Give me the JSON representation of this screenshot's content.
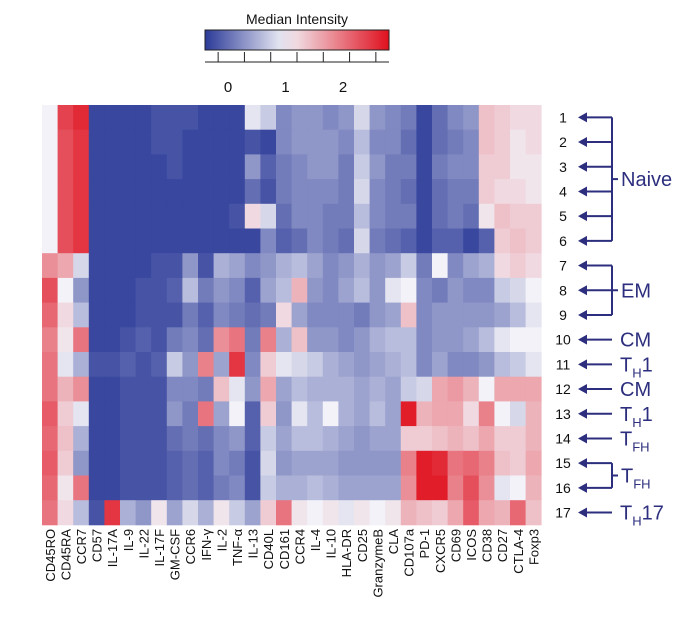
{
  "chart_data": {
    "type": "heatmap",
    "colorbar": {
      "title": "Median Intensity",
      "range": [
        -0.4,
        2.8
      ],
      "ticks": [
        0,
        1,
        2
      ],
      "tick_labels": [
        "0",
        "1",
        "2"
      ],
      "colors": {
        "low": "#2b3a98",
        "mid": "#f2f2f8",
        "high": "#e0101e"
      },
      "mid_value": 1
    },
    "columns": [
      "CD45RO",
      "CD45RA",
      "CCR7",
      "CD57",
      "IL-17A",
      "IL-9",
      "IL-22",
      "IL-17F",
      "GM-CSF",
      "CCR6",
      "IFN-γ",
      "IL-2",
      "TNF-α",
      "IL-13",
      "CD40L",
      "CD161",
      "CCR4",
      "IL-4",
      "IL-10",
      "HLA-DR",
      "CD25",
      "GranzymeB",
      "CLA",
      "CD107a",
      "PD-1",
      "CXCR5",
      "CD69",
      "ICOS",
      "CD38",
      "CD27",
      "CTLA-4",
      "Foxp3"
    ],
    "rows": [
      "1",
      "2",
      "3",
      "4",
      "5",
      "6",
      "7",
      "8",
      "9",
      "10",
      "11",
      "12",
      "13",
      "14",
      "15",
      "16",
      "17"
    ],
    "values": [
      [
        1.0,
        2.4,
        2.6,
        -0.3,
        -0.3,
        -0.3,
        -0.3,
        -0.2,
        -0.2,
        -0.2,
        -0.3,
        -0.3,
        -0.3,
        0.9,
        0.7,
        0.2,
        0.3,
        0.3,
        0.2,
        0.3,
        0.8,
        0.3,
        0.2,
        0.1,
        -0.3,
        0.0,
        0.2,
        0.3,
        1.4,
        1.3,
        1.2,
        1.2
      ],
      [
        1.0,
        2.3,
        2.5,
        -0.3,
        -0.3,
        -0.3,
        -0.3,
        -0.2,
        -0.2,
        -0.3,
        -0.3,
        -0.3,
        -0.3,
        -0.2,
        -0.3,
        0.2,
        0.3,
        0.3,
        0.3,
        0.2,
        0.6,
        0.2,
        0.2,
        0.0,
        -0.3,
        0.0,
        0.1,
        0.2,
        1.4,
        1.3,
        1.1,
        1.2
      ],
      [
        1.0,
        2.3,
        2.5,
        -0.3,
        -0.3,
        -0.3,
        -0.3,
        -0.3,
        -0.2,
        -0.3,
        -0.3,
        -0.3,
        -0.3,
        0.3,
        -0.1,
        0.1,
        0.2,
        0.3,
        0.3,
        0.1,
        0.7,
        0.3,
        0.1,
        0.1,
        -0.3,
        0.1,
        0.2,
        0.2,
        1.3,
        1.3,
        1.1,
        1.1
      ],
      [
        1.0,
        2.3,
        2.5,
        -0.3,
        -0.3,
        -0.3,
        -0.3,
        -0.3,
        -0.3,
        -0.3,
        -0.3,
        -0.3,
        -0.3,
        0.0,
        -0.2,
        0.1,
        0.2,
        0.2,
        0.2,
        0.1,
        0.8,
        0.2,
        0.1,
        0.0,
        -0.3,
        0.0,
        0.1,
        0.1,
        1.3,
        1.2,
        1.2,
        1.1
      ],
      [
        1.0,
        2.3,
        2.5,
        -0.3,
        -0.3,
        -0.3,
        -0.3,
        -0.3,
        -0.3,
        -0.3,
        -0.3,
        -0.3,
        -0.2,
        1.2,
        0.8,
        0.0,
        0.2,
        0.2,
        0.1,
        0.1,
        0.6,
        0.2,
        0.1,
        0.1,
        -0.3,
        0.0,
        0.1,
        0.0,
        1.1,
        1.4,
        1.3,
        1.3
      ],
      [
        1.0,
        2.3,
        2.5,
        -0.3,
        -0.3,
        -0.3,
        -0.3,
        -0.3,
        -0.3,
        -0.3,
        -0.3,
        -0.3,
        -0.3,
        -0.3,
        0.2,
        -0.1,
        0.0,
        0.2,
        0.1,
        0.0,
        0.8,
        0.1,
        0.0,
        -0.1,
        -0.3,
        -0.1,
        -0.1,
        -0.3,
        -0.1,
        1.3,
        1.4,
        1.3
      ],
      [
        1.8,
        1.6,
        0.8,
        -0.3,
        -0.3,
        -0.3,
        -0.3,
        -0.2,
        -0.2,
        0.3,
        -0.2,
        0.5,
        0.4,
        0.2,
        0.3,
        0.5,
        0.6,
        0.4,
        0.2,
        0.3,
        0.5,
        0.3,
        0.4,
        0.7,
        0.1,
        1.0,
        0.2,
        0.4,
        0.5,
        1.2,
        1.3,
        1.2
      ],
      [
        2.3,
        1.0,
        0.3,
        -0.3,
        -0.3,
        -0.3,
        -0.2,
        -0.2,
        -0.1,
        0.6,
        0.1,
        0.3,
        0.2,
        -0.1,
        0.4,
        0.6,
        1.5,
        0.3,
        0.2,
        0.4,
        0.6,
        0.3,
        0.9,
        1.0,
        0.2,
        0.1,
        0.3,
        0.2,
        0.2,
        0.7,
        0.8,
        1.0
      ],
      [
        2.1,
        1.2,
        0.6,
        -0.3,
        -0.3,
        -0.3,
        -0.2,
        -0.2,
        -0.2,
        0.1,
        -0.1,
        0.2,
        0.1,
        0.0,
        0.1,
        1.2,
        0.4,
        0.2,
        0.2,
        0.2,
        0.1,
        0.3,
        0.4,
        1.4,
        0.2,
        0.3,
        0.3,
        0.3,
        0.3,
        0.4,
        0.6,
        0.9
      ],
      [
        1.9,
        1.1,
        2.0,
        -0.3,
        -0.3,
        -0.2,
        -0.1,
        -0.2,
        0.1,
        0.2,
        0.0,
        1.8,
        2.0,
        0.1,
        1.9,
        0.5,
        1.4,
        0.3,
        0.3,
        0.2,
        0.3,
        0.5,
        0.6,
        0.6,
        0.2,
        0.3,
        0.3,
        0.4,
        0.6,
        0.9,
        1.0,
        1.0
      ],
      [
        2.0,
        0.9,
        0.5,
        -0.2,
        -0.2,
        -0.1,
        -0.2,
        -0.1,
        0.7,
        0.3,
        1.9,
        0.4,
        2.5,
        0.2,
        1.3,
        0.9,
        0.8,
        0.7,
        0.5,
        0.4,
        0.3,
        0.4,
        0.5,
        0.6,
        0.2,
        0.4,
        0.2,
        0.2,
        0.3,
        0.6,
        0.7,
        0.9
      ],
      [
        2.0,
        1.5,
        1.8,
        -0.3,
        -0.3,
        -0.2,
        -0.2,
        -0.2,
        0.2,
        0.2,
        0.1,
        1.4,
        0.9,
        0.3,
        1.6,
        0.4,
        0.6,
        0.5,
        0.5,
        0.5,
        0.4,
        0.5,
        0.4,
        0.7,
        0.8,
        1.6,
        1.7,
        1.5,
        1.0,
        1.6,
        1.6,
        1.6
      ],
      [
        2.2,
        1.3,
        0.9,
        -0.3,
        -0.3,
        -0.2,
        -0.2,
        -0.2,
        0.3,
        0.1,
        2.0,
        0.4,
        1.0,
        -0.1,
        1.3,
        0.3,
        0.9,
        0.6,
        1.0,
        0.5,
        0.4,
        0.6,
        0.4,
        2.7,
        1.5,
        1.6,
        1.6,
        1.2,
        1.9,
        1.0,
        0.8,
        1.5
      ],
      [
        2.1,
        1.4,
        0.5,
        -0.3,
        -0.3,
        -0.2,
        -0.2,
        -0.2,
        0.0,
        0.1,
        0.0,
        0.2,
        0.3,
        -0.1,
        0.7,
        0.4,
        0.6,
        0.6,
        0.5,
        0.4,
        0.3,
        0.4,
        0.4,
        1.3,
        1.3,
        1.4,
        1.5,
        1.4,
        1.6,
        1.3,
        1.3,
        1.5
      ],
      [
        2.2,
        1.3,
        0.3,
        -0.3,
        -0.3,
        -0.2,
        -0.2,
        -0.2,
        -0.1,
        0.0,
        -0.1,
        0.2,
        0.1,
        -0.2,
        0.8,
        0.3,
        0.4,
        0.4,
        0.4,
        0.3,
        0.3,
        0.3,
        0.3,
        1.9,
        2.7,
        2.6,
        2.0,
        2.1,
        1.9,
        1.4,
        1.3,
        1.6
      ],
      [
        2.1,
        1.1,
        2.0,
        -0.3,
        -0.3,
        -0.2,
        -0.2,
        -0.2,
        -0.1,
        0.0,
        -0.1,
        0.1,
        0.2,
        -0.2,
        0.7,
        0.5,
        0.5,
        0.6,
        0.5,
        0.4,
        0.4,
        0.4,
        0.4,
        1.8,
        2.7,
        2.7,
        1.9,
        2.3,
        1.8,
        0.9,
        1.0,
        1.5
      ],
      [
        2.0,
        1.2,
        0.6,
        -0.2,
        2.5,
        0.5,
        0.3,
        1.1,
        0.4,
        0.8,
        0.5,
        1.1,
        0.7,
        0.4,
        1.3,
        2.0,
        1.1,
        1.0,
        1.1,
        0.9,
        1.1,
        1.0,
        1.1,
        1.5,
        1.4,
        1.3,
        1.6,
        2.2,
        1.6,
        1.5,
        2.1,
        1.4
      ]
    ],
    "annotations": [
      {
        "label": "Naive",
        "sub": "",
        "suffix": "",
        "rows": [
          1,
          2,
          3,
          4,
          5,
          6
        ]
      },
      {
        "label": "EM",
        "sub": "",
        "suffix": "",
        "rows": [
          7,
          8,
          9
        ]
      },
      {
        "label": "CM",
        "sub": "",
        "suffix": "",
        "rows": [
          10
        ]
      },
      {
        "label": "T",
        "sub": "H",
        "suffix": "1",
        "rows": [
          11
        ]
      },
      {
        "label": "CM",
        "sub": "",
        "suffix": "",
        "rows": [
          12
        ]
      },
      {
        "label": "T",
        "sub": "H",
        "suffix": "1",
        "rows": [
          13
        ]
      },
      {
        "label": "T",
        "sub": "FH",
        "suffix": "",
        "rows": [
          14
        ]
      },
      {
        "label": "T",
        "sub": "FH",
        "suffix": "",
        "rows": [
          15,
          16
        ]
      },
      {
        "label": "T",
        "sub": "H",
        "suffix": "17",
        "rows": [
          17
        ]
      }
    ],
    "annotation_color": "#2d2f7e"
  }
}
